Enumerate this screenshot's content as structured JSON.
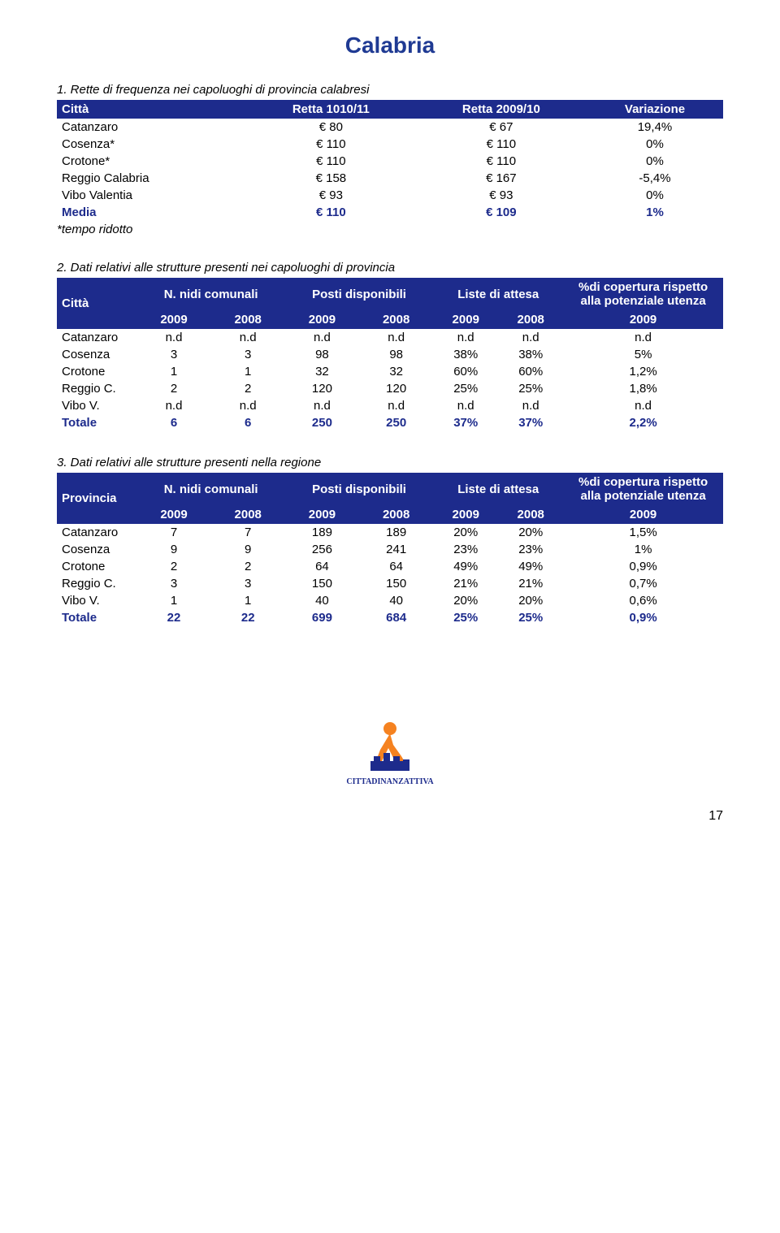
{
  "page": {
    "title": "Calabria",
    "page_number": "17",
    "footnote": "*tempo ridotto"
  },
  "colors": {
    "header_bg": "#1d2b8c",
    "header_fg": "#ffffff",
    "title_color": "#1f3a93",
    "total_color": "#1d2b8c",
    "logo_orange": "#f58220",
    "logo_blue": "#1d2b8c"
  },
  "table1": {
    "caption": "1. Rette di frequenza nei capoluoghi di provincia calabresi",
    "headers": [
      "Città",
      "Retta 1010/11",
      "Retta 2009/10",
      "Variazione"
    ],
    "rows": [
      [
        "Catanzaro",
        "€ 80",
        "€ 67",
        "19,4%"
      ],
      [
        "Cosenza*",
        "€ 110",
        "€ 110",
        "0%"
      ],
      [
        "Crotone*",
        "€ 110",
        "€ 110",
        "0%"
      ],
      [
        "Reggio Calabria",
        "€ 158",
        "€ 167",
        "-5,4%"
      ],
      [
        "Vibo Valentia",
        "€ 93",
        "€ 93",
        "0%"
      ]
    ],
    "total": [
      "Media",
      "€ 110",
      "€ 109",
      "1%"
    ]
  },
  "table2": {
    "caption": "2. Dati relativi alle strutture presenti nei capoluoghi di provincia",
    "top_headers": [
      "Città",
      "N. nidi comunali",
      "Posti disponibili",
      "Liste di attesa",
      "%di copertura rispetto alla potenziale utenza"
    ],
    "year_headers": [
      "2009",
      "2008",
      "2009",
      "2008",
      "2009",
      "2008",
      "2009"
    ],
    "rows": [
      [
        "Catanzaro",
        "n.d",
        "n.d",
        "n.d",
        "n.d",
        "n.d",
        "n.d",
        "n.d"
      ],
      [
        "Cosenza",
        "3",
        "3",
        "98",
        "98",
        "38%",
        "38%",
        "5%"
      ],
      [
        "Crotone",
        "1",
        "1",
        "32",
        "32",
        "60%",
        "60%",
        "1,2%"
      ],
      [
        "Reggio C.",
        "2",
        "2",
        "120",
        "120",
        "25%",
        "25%",
        "1,8%"
      ],
      [
        "Vibo V.",
        "n.d",
        "n.d",
        "n.d",
        "n.d",
        "n.d",
        "n.d",
        "n.d"
      ]
    ],
    "total": [
      "Totale",
      "6",
      "6",
      "250",
      "250",
      "37%",
      "37%",
      "2,2%"
    ]
  },
  "table3": {
    "caption": "3. Dati relativi alle strutture presenti nella regione",
    "top_headers": [
      "Provincia",
      "N. nidi comunali",
      "Posti disponibili",
      "Liste di attesa",
      "%di copertura rispetto alla potenziale utenza"
    ],
    "year_headers": [
      "2009",
      "2008",
      "2009",
      "2008",
      "2009",
      "2008",
      "2009"
    ],
    "rows": [
      [
        "Catanzaro",
        "7",
        "7",
        "189",
        "189",
        "20%",
        "20%",
        "1,5%"
      ],
      [
        "Cosenza",
        "9",
        "9",
        "256",
        "241",
        "23%",
        "23%",
        "1%"
      ],
      [
        "Crotone",
        "2",
        "2",
        "64",
        "64",
        "49%",
        "49%",
        "0,9%"
      ],
      [
        "Reggio C.",
        "3",
        "3",
        "150",
        "150",
        "21%",
        "21%",
        "0,7%"
      ],
      [
        "Vibo V.",
        "1",
        "1",
        "40",
        "40",
        "20%",
        "20%",
        "0,6%"
      ]
    ],
    "total": [
      "Totale",
      "22",
      "22",
      "699",
      "684",
      "25%",
      "25%",
      "0,9%"
    ]
  },
  "logo": {
    "text": "CITTADINANZATTIVA"
  }
}
